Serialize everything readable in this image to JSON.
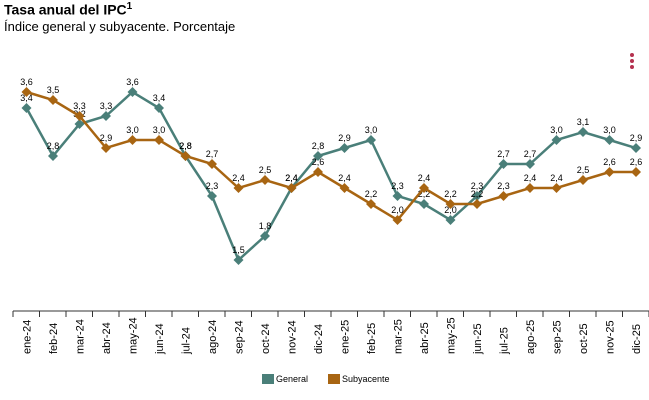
{
  "header": {
    "title": "Tasa anual del IPC",
    "title_sup": "1",
    "subtitle": "Índice general y subyacente. Porcentaje"
  },
  "menu": {
    "icon": "more-vert-icon",
    "color": "#b5314f"
  },
  "chart_data": {
    "type": "line",
    "title": "Tasa anual del IPC",
    "subtitle": "Índice general y subyacente. Porcentaje",
    "xlabel": "",
    "ylabel": "",
    "ylim": [
      1.0,
      4.0
    ],
    "grid": false,
    "legend": "bottom-center",
    "categories": [
      "ene-24",
      "feb-24",
      "mar-24",
      "abr-24",
      "may-24",
      "jun-24",
      "jul-24",
      "ago-24",
      "sep-24",
      "oct-24",
      "nov-24",
      "dic-24",
      "ene-25",
      "feb-25",
      "mar-25",
      "abr-25",
      "may-25",
      "jun-25",
      "jul-25",
      "ago-25",
      "sep-25",
      "oct-25",
      "nov-25",
      "dic-25"
    ],
    "series": [
      {
        "name": "General",
        "color": "#4a7f79",
        "values": [
          3.4,
          2.8,
          3.2,
          3.3,
          3.6,
          3.4,
          2.8,
          2.3,
          1.5,
          1.8,
          2.4,
          2.8,
          2.9,
          3.0,
          2.3,
          2.2,
          2.0,
          2.3,
          2.7,
          2.7,
          3.0,
          3.1,
          3.0,
          2.9
        ],
        "labels": [
          "3,4",
          "2,8",
          "3,2",
          "3,3",
          "3,6",
          "3,4",
          "2,8",
          "2,3",
          "1,5",
          "1,8",
          "2,4",
          "2,8",
          "2,9",
          "3,0",
          "2,3",
          "2,2",
          "2,0",
          "2,3",
          "2,7",
          "2,7",
          "3,0",
          "3,1",
          "3,0",
          "2,9"
        ]
      },
      {
        "name": "Subyacente",
        "color": "#a86512",
        "values": [
          3.6,
          3.5,
          3.3,
          2.9,
          3.0,
          3.0,
          2.8,
          2.7,
          2.4,
          2.5,
          2.4,
          2.6,
          2.4,
          2.2,
          2.0,
          2.4,
          2.2,
          2.2,
          2.3,
          2.4,
          2.4,
          2.5,
          2.6,
          2.6
        ],
        "labels": [
          "3,6",
          "3,5",
          "3,3",
          "2,9",
          "3,0",
          "3,0",
          "2,8",
          "2,7",
          "2,4",
          "2,5",
          "2,4",
          "2,6",
          "2,4",
          "2,2",
          "2,0",
          "2,4",
          "2,2",
          "2,2",
          "2,3",
          "2,4",
          "2,4",
          "2,5",
          "2,6",
          "2,6"
        ]
      }
    ]
  }
}
